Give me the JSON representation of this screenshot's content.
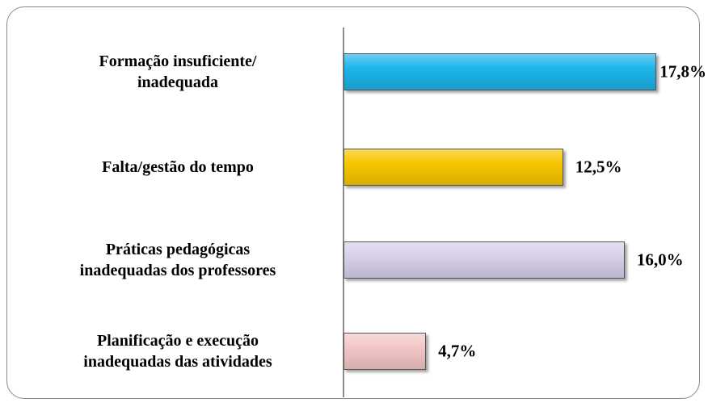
{
  "chart_data": {
    "type": "bar",
    "orientation": "horizontal",
    "categories": [
      "Formação insuficiente/\ninadequada",
      "Falta/gestão do tempo",
      "Práticas pedagógicas\ninadequadas dos professores",
      "Planificação e execução\ninadequadas das atividades"
    ],
    "values": [
      17.8,
      12.5,
      16.0,
      4.7
    ],
    "value_labels": [
      "17,8%",
      "12,5%",
      "16,0%",
      "4,7%"
    ],
    "colors": [
      "#1cb4ea",
      "#f7c600",
      "#d8cfe9",
      "#f3c6c6"
    ]
  }
}
